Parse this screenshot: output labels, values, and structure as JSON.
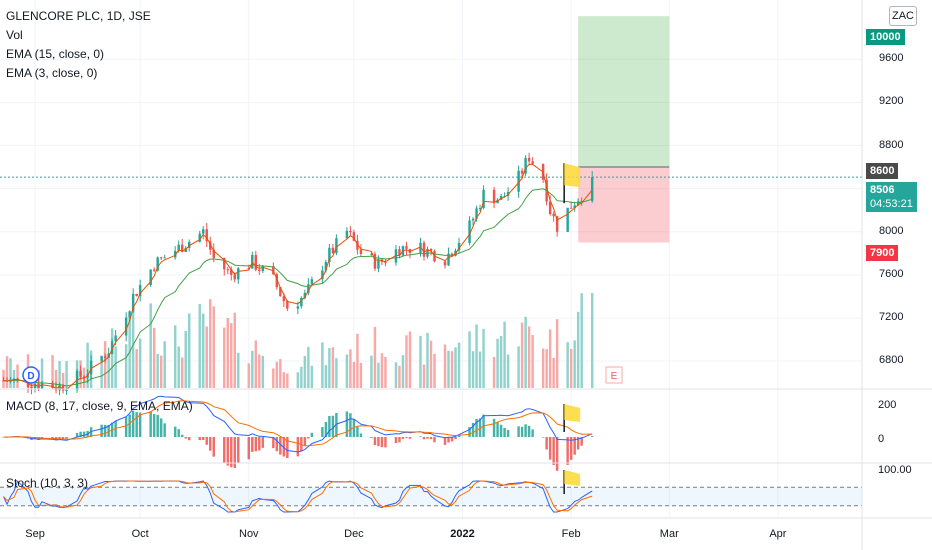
{
  "header": {
    "symbol_line": "GLENCORE PLC, 1D, JSE",
    "indicators": [
      "Vol",
      "EMA (15, close, 0)",
      "EMA (3, close, 0)"
    ],
    "currency_button": "ZAC"
  },
  "macd_pane": {
    "label": "MACD (8, 17, close, 9, EMA, EMA)",
    "ticks": [
      "200",
      "0"
    ]
  },
  "stoch_pane": {
    "label": "Stoch (10, 3, 3)",
    "ticks": [
      "100.00"
    ]
  },
  "badges": {
    "target": "10000",
    "entry": "8600",
    "last_price": "8506",
    "countdown": "04:53:21",
    "stop": "7900"
  },
  "colors": {
    "up": "#26a69a",
    "down": "#ef5350",
    "ema_fast": "#e65100",
    "ema_slow": "#43a047",
    "target_badge": "#089981",
    "stop_badge": "#f23645",
    "last_badge": "#26a69a",
    "entry_badge": "#4a4a4a"
  },
  "chart_data": {
    "type": "candlestick",
    "y_ticks": [
      6800,
      7200,
      7600,
      8000,
      8400,
      8800,
      9200,
      9600
    ],
    "y_tick_labels": [
      "6800",
      "7200",
      "7600",
      "8000",
      "8800",
      "9200",
      "9600"
    ],
    "ylim": [
      6550,
      10150
    ],
    "x_ticks": [
      {
        "label": "Sep",
        "date": "2021-09-01"
      },
      {
        "label": "Oct",
        "date": "2021-10-01"
      },
      {
        "label": "Nov",
        "date": "2021-11-01"
      },
      {
        "label": "Dec",
        "date": "2021-12-01"
      },
      {
        "label": "2022",
        "date": "2022-01-01"
      },
      {
        "label": "Feb",
        "date": "2022-02-01"
      },
      {
        "label": "Mar",
        "date": "2022-03-01"
      },
      {
        "label": "Apr",
        "date": "2022-04-01"
      }
    ],
    "date_range": [
      "2021-08-22",
      "2022-04-25"
    ],
    "last_price": 8506,
    "position": {
      "entry": 8600,
      "target": 10000,
      "stop": 7900,
      "start_date": "2022-02-03",
      "end_date": "2022-03-01"
    },
    "key_points": [
      {
        "date": "2021-08-23",
        "close": 6620
      },
      {
        "date": "2021-09-01",
        "close": 6600
      },
      {
        "date": "2021-09-08",
        "close": 6560
      },
      {
        "date": "2021-09-15",
        "close": 6680
      },
      {
        "date": "2021-09-22",
        "close": 6900
      },
      {
        "date": "2021-09-29",
        "close": 7400
      },
      {
        "date": "2021-10-05",
        "close": 7700
      },
      {
        "date": "2021-10-12",
        "close": 7850
      },
      {
        "date": "2021-10-19",
        "close": 8000
      },
      {
        "date": "2021-10-22",
        "close": 7750
      },
      {
        "date": "2021-10-27",
        "close": 7600
      },
      {
        "date": "2021-11-02",
        "close": 7720
      },
      {
        "date": "2021-11-08",
        "close": 7550
      },
      {
        "date": "2021-11-12",
        "close": 7300
      },
      {
        "date": "2021-11-17",
        "close": 7400
      },
      {
        "date": "2021-11-23",
        "close": 7750
      },
      {
        "date": "2021-11-29",
        "close": 8000
      },
      {
        "date": "2021-12-03",
        "close": 7800
      },
      {
        "date": "2021-12-08",
        "close": 7700
      },
      {
        "date": "2021-12-14",
        "close": 7850
      },
      {
        "date": "2021-12-20",
        "close": 7850
      },
      {
        "date": "2021-12-27",
        "close": 7750
      },
      {
        "date": "2022-01-03",
        "close": 8050
      },
      {
        "date": "2022-01-07",
        "close": 8350
      },
      {
        "date": "2022-01-12",
        "close": 8300
      },
      {
        "date": "2022-01-17",
        "close": 8500
      },
      {
        "date": "2022-01-20",
        "close": 8700
      },
      {
        "date": "2022-01-24",
        "close": 8500
      },
      {
        "date": "2022-01-26",
        "close": 8200
      },
      {
        "date": "2022-01-28",
        "close": 8050
      },
      {
        "date": "2022-02-01",
        "close": 8250
      },
      {
        "date": "2022-02-04",
        "close": 8350
      },
      {
        "date": "2022-02-07",
        "close": 8506
      }
    ],
    "volume_key_points": [
      {
        "date": "2021-09-10",
        "volume": 0.25
      },
      {
        "date": "2021-09-24",
        "volume": 0.45
      },
      {
        "date": "2021-10-04",
        "volume": 0.9
      },
      {
        "date": "2021-10-08",
        "volume": 0.4
      },
      {
        "date": "2021-10-20",
        "volume": 0.7
      },
      {
        "date": "2021-10-28",
        "volume": 0.55
      },
      {
        "date": "2021-11-10",
        "volume": 0.25
      },
      {
        "date": "2021-12-07",
        "volume": 0.45
      },
      {
        "date": "2021-12-20",
        "volume": 0.4
      },
      {
        "date": "2022-01-20",
        "volume": 0.6
      },
      {
        "date": "2022-01-27",
        "volume": 0.5
      },
      {
        "date": "2022-02-04",
        "volume": 0.85
      }
    ]
  }
}
